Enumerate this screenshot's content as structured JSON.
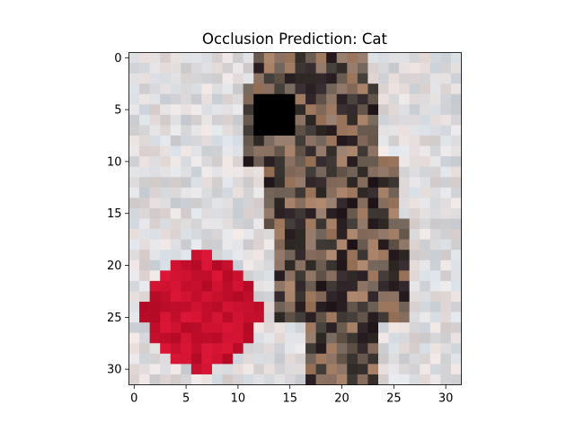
{
  "chart_data": {
    "type": "heatmap",
    "title": "Occlusion Prediction: Cat",
    "xlabel": "",
    "ylabel": "",
    "grid_size": [
      32,
      32
    ],
    "xlim": [
      -0.5,
      31.5
    ],
    "ylim": [
      31.5,
      -0.5
    ],
    "y_inverted": true,
    "grid": false,
    "x_ticks": [
      0,
      5,
      10,
      15,
      20,
      25,
      30
    ],
    "y_ticks": [
      0,
      5,
      10,
      15,
      20,
      25,
      30
    ],
    "image_content": {
      "subject": "cat",
      "background_color": "#dcdad6",
      "cat_colors": [
        "#3a3430",
        "#6b5d52",
        "#8e7464",
        "#2c2226",
        "#a27c62"
      ],
      "red_object": {
        "center": [
          6.5,
          24.5
        ],
        "radius": 5.6,
        "color": "#c8102e"
      },
      "occlusion_patch": {
        "x": [
          12,
          15
        ],
        "y": [
          4,
          7
        ],
        "color": "#000000"
      }
    }
  }
}
